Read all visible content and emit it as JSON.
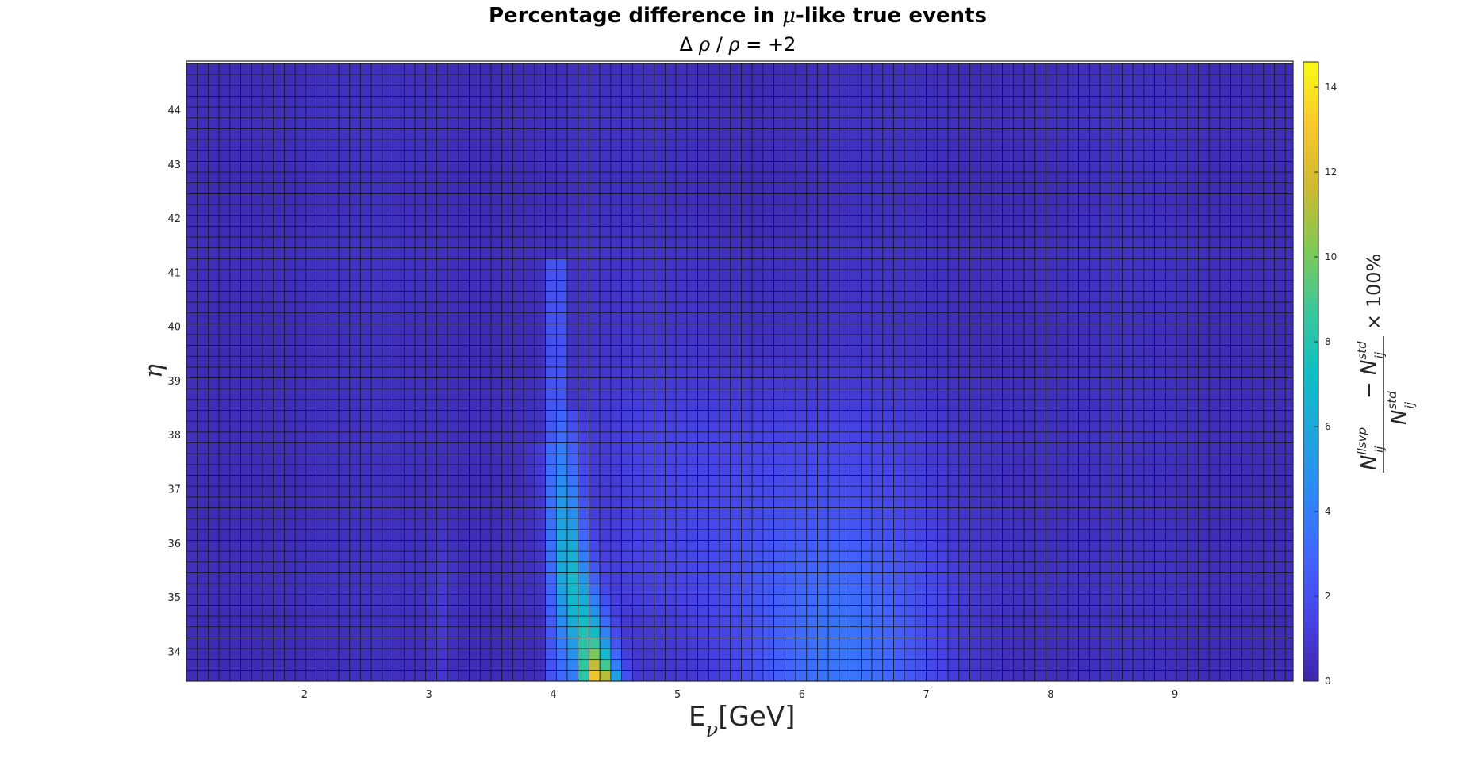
{
  "chart_data": {
    "type": "heatmap",
    "title_prefix": "Percentage difference in ",
    "title_symbol": "μ",
    "title_suffix": "-like true events",
    "subtitle_delta": "Δ",
    "subtitle_rho1": "ρ",
    "subtitle_slash": " / ",
    "subtitle_rho2": "ρ",
    "subtitle_value": " = +2",
    "xlabel": "E",
    "xlabel_sub": "ν",
    "xlabel_unit": "[GeV]",
    "ylabel": "η",
    "colorbar_label": {
      "num_n1": "N",
      "num_sup1": "llsvp",
      "num_sub1": "ij",
      "minus": "−",
      "num_n2": "N",
      "num_sup2": "std",
      "num_sub2": "ij",
      "den_n": "N",
      "den_sup": "std",
      "den_sub": "ij",
      "suffix": "× 100%"
    },
    "xlim": [
      1.05,
      9.95
    ],
    "ylim": [
      33.45,
      44.9
    ],
    "x_bin_width": 0.0875,
    "y_bin_width": 0.2,
    "xticks": [
      "2",
      "3",
      "4",
      "5",
      "6",
      "7",
      "8",
      "9"
    ],
    "yticks": [
      "34",
      "35",
      "36",
      "37",
      "38",
      "39",
      "40",
      "41",
      "42",
      "43",
      "44"
    ],
    "clim": [
      0,
      14.6
    ],
    "colorbar_ticks": [
      "0",
      "2",
      "4",
      "6",
      "8",
      "10",
      "12",
      "14"
    ],
    "colormap": "parula",
    "grid": false,
    "peak": {
      "x": 4.36,
      "y": 33.6,
      "value": 14.5
    },
    "features": [
      {
        "region": "4.05-4.5 GeV, eta 33.5-37.5",
        "value_range": [
          3,
          14.5
        ]
      },
      {
        "region": "4.0-4.1 GeV, eta 33.5-41.3",
        "value_range": [
          2,
          5
        ]
      },
      {
        "region": "5.5-7.3 GeV, eta 33.5-37.5",
        "value_range": [
          2,
          4
        ]
      },
      {
        "region": "elsewhere",
        "value_range": [
          0.3,
          1.5
        ]
      }
    ]
  }
}
